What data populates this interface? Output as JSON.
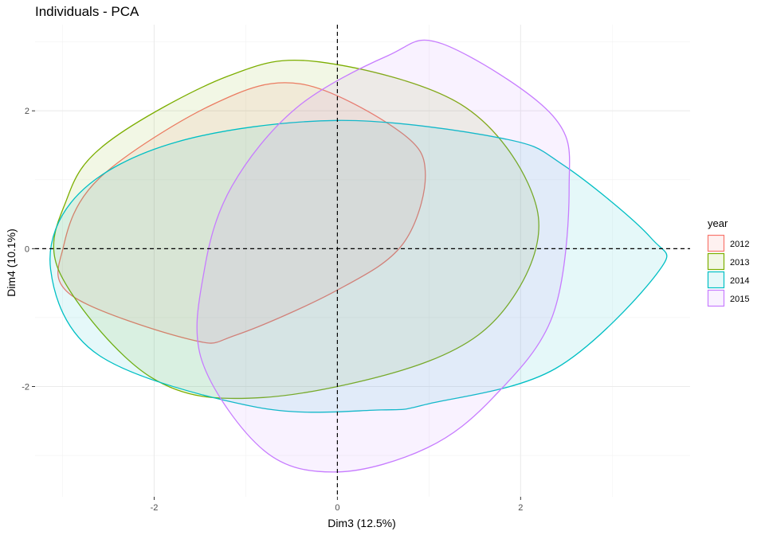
{
  "chart_data": {
    "type": "scatter",
    "title": "Individuals - PCA",
    "xlabel": "Dim3 (12.5%)",
    "ylabel": "Dim4 (10.1%)",
    "xlim": [
      -3.3,
      3.85
    ],
    "ylim": [
      -3.6,
      3.25
    ],
    "x_ticks": [
      -2,
      0,
      2
    ],
    "x_tick_labels": [
      "-2",
      "0",
      "2"
    ],
    "y_ticks": [
      -2,
      0,
      2
    ],
    "y_tick_labels": [
      "-2",
      "0",
      "2"
    ],
    "x_minor_ticks": [
      -3,
      -1,
      1,
      3
    ],
    "y_minor_ticks": [
      -3,
      -1,
      1,
      3
    ],
    "grid": true,
    "reference_lines": {
      "x": 0,
      "y": 0,
      "style": "dashed"
    },
    "legend": {
      "title": "year",
      "position": "right"
    },
    "series": [
      {
        "name": "2012",
        "color": "#F8766D",
        "ellipse": {
          "points": [
            [
              -0.4,
              2.39
            ],
            [
              0.69,
              1.69
            ],
            [
              0.96,
              1.07
            ],
            [
              0.71,
              0.06
            ],
            [
              0.0,
              -0.6
            ],
            [
              -1.1,
              -1.25
            ],
            [
              -1.6,
              -1.32
            ],
            [
              -2.9,
              -0.68
            ],
            [
              -2.99,
              0.03
            ],
            [
              -2.6,
              1.02
            ],
            [
              -1.35,
              2.1
            ]
          ]
        }
      },
      {
        "name": "2013",
        "color": "#7CAE00",
        "ellipse": {
          "points": [
            [
              -0.2,
              2.71
            ],
            [
              1.4,
              2.05
            ],
            [
              2.18,
              0.57
            ],
            [
              1.88,
              -0.78
            ],
            [
              1.0,
              -1.63
            ],
            [
              -0.81,
              -2.16
            ],
            [
              -2.03,
              -1.87
            ],
            [
              -3.03,
              -0.35
            ],
            [
              -2.95,
              0.73
            ],
            [
              -2.5,
              1.55
            ],
            [
              -1.2,
              2.5
            ]
          ]
        }
      },
      {
        "name": "2014",
        "color": "#00BFC4",
        "ellipse": {
          "points": [
            [
              0.0,
              1.86
            ],
            [
              1.8,
              1.6
            ],
            [
              2.47,
              1.21
            ],
            [
              3.42,
              0.16
            ],
            [
              3.5,
              -0.34
            ],
            [
              2.38,
              -1.74
            ],
            [
              1.0,
              -2.25
            ],
            [
              0.48,
              -2.34
            ],
            [
              -0.88,
              -2.3
            ],
            [
              -2.6,
              -1.55
            ],
            [
              -3.13,
              -0.3
            ],
            [
              -2.82,
              0.8
            ],
            [
              -1.75,
              1.55
            ]
          ]
        }
      },
      {
        "name": "2015",
        "color": "#C77CFF",
        "ellipse": {
          "points": [
            [
              1.15,
              2.97
            ],
            [
              2.35,
              1.93
            ],
            [
              2.53,
              0.88
            ],
            [
              2.35,
              -0.97
            ],
            [
              1.7,
              -2.16
            ],
            [
              0.98,
              -2.89
            ],
            [
              0.0,
              -3.24
            ],
            [
              -0.8,
              -2.93
            ],
            [
              -1.48,
              -1.62
            ],
            [
              -1.45,
              -0.29
            ],
            [
              -1.15,
              0.91
            ],
            [
              -0.45,
              2.04
            ],
            [
              0.55,
              2.8
            ]
          ]
        }
      }
    ]
  }
}
